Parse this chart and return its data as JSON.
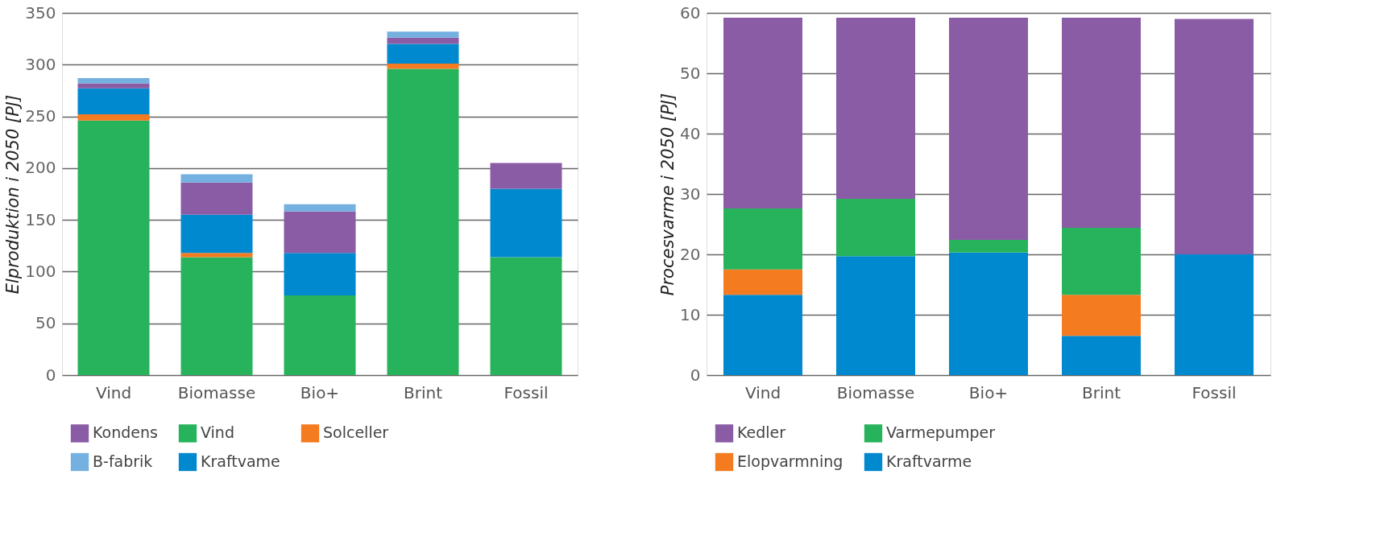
{
  "chart_data": [
    {
      "type": "bar",
      "stacked": true,
      "ylabel": "Elproduktion i 2050 [PJ]",
      "categories": [
        "Vind",
        "Biomasse",
        "Bio+",
        "Brint",
        "Fossil"
      ],
      "ylim": [
        0,
        350
      ],
      "yticks": [
        0,
        50,
        100,
        150,
        200,
        250,
        300,
        350
      ],
      "grid": "y",
      "legend": "bottom",
      "series": [
        {
          "name": "Vind",
          "color": "#27b35c",
          "values": [
            246,
            114,
            77,
            296,
            114
          ]
        },
        {
          "name": "Solceller",
          "color": "#f47b20",
          "values": [
            6,
            4,
            0,
            5,
            0
          ]
        },
        {
          "name": "Kraftvame",
          "color": "#0089cf",
          "values": [
            25,
            37,
            41,
            19,
            66
          ]
        },
        {
          "name": "Kondens",
          "color": "#8b5ca6",
          "values": [
            5,
            31,
            40,
            6,
            25
          ]
        },
        {
          "name": "B-fabrik",
          "color": "#74b0e0",
          "values": [
            5,
            8,
            7,
            6,
            0
          ]
        }
      ]
    },
    {
      "type": "bar",
      "stacked": true,
      "ylabel": "Procesvarme  i 2050 [PJ]",
      "categories": [
        "Vind",
        "Biomasse",
        "Bio+",
        "Brint",
        "Fossil"
      ],
      "ylim": [
        0,
        60
      ],
      "yticks": [
        0,
        10,
        20,
        30,
        40,
        50,
        60
      ],
      "grid": "y",
      "legend": "bottom",
      "series": [
        {
          "name": "Kraftvarme",
          "color": "#0089cf",
          "values": [
            13.3,
            19.7,
            20.3,
            6.5,
            20
          ]
        },
        {
          "name": "Elopvarmning",
          "color": "#f47b20",
          "values": [
            4.2,
            0,
            0,
            6.8,
            0
          ]
        },
        {
          "name": "Varmepumper",
          "color": "#27b35c",
          "values": [
            10.1,
            9.5,
            2.1,
            11.1,
            0
          ]
        },
        {
          "name": "Kedler",
          "color": "#8b5ca6",
          "values": [
            31.6,
            30,
            36.8,
            34.8,
            39
          ]
        }
      ]
    }
  ]
}
